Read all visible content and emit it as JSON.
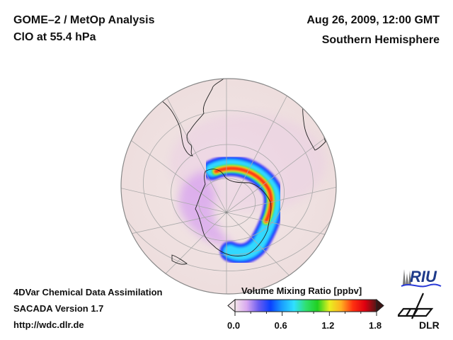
{
  "header": {
    "title_line1": "GOME–2 / MetOp Analysis",
    "title_line2": "ClO at 55.4 hPa",
    "date": "Aug 26, 2009, 12:00 GMT",
    "region": "Southern Hemisphere"
  },
  "footer": {
    "line1": "4DVar Chemical Data Assimilation",
    "line2": "SACADA Version 1.7",
    "url": "http://wdc.dlr.de"
  },
  "map": {
    "projection": "orthographic",
    "hemisphere": "south",
    "background_color": "#f0e4e4",
    "graticule_color": "#a9a9a9",
    "coastline_color": "#222222"
  },
  "colorbar": {
    "title": "Volume Mixing Ratio [ppbv]",
    "min": 0.0,
    "max": 1.8,
    "tick_labels": [
      "0.0",
      "0.6",
      "1.2",
      "1.8"
    ],
    "tick_values": [
      0.0,
      0.6,
      1.2,
      1.8
    ],
    "colors": [
      "#f4e4ea",
      "#d8a8f0",
      "#6a5cf0",
      "#0a40ff",
      "#1aa0ff",
      "#30e0ff",
      "#30e070",
      "#20d020",
      "#e8f020",
      "#ffb020",
      "#ff3010",
      "#e00010",
      "#501818"
    ],
    "extend": "both"
  },
  "logos": {
    "riu": "RIU",
    "dlr": "DLR"
  }
}
